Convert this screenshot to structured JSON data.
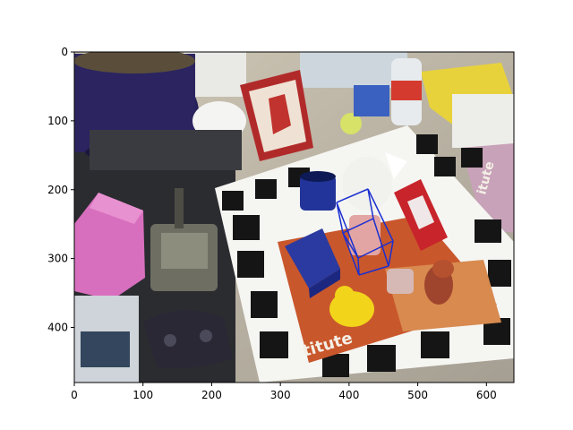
{
  "figure": {
    "image_description_kind": "photo",
    "box_color": "#1a2fd0"
  },
  "axes": {
    "x_ticks": [
      0,
      100,
      200,
      300,
      400,
      500,
      600
    ],
    "y_ticks": [
      0,
      100,
      200,
      300,
      400
    ],
    "x_tick_labels": [
      "0",
      "100",
      "200",
      "300",
      "400",
      "500",
      "600"
    ],
    "y_tick_labels": [
      "0",
      "100",
      "200",
      "300",
      "400"
    ],
    "xlim": [
      0,
      640
    ],
    "ylim": [
      480,
      0
    ]
  },
  "scene": {
    "objects": [
      {
        "name": "blue-pot"
      },
      {
        "name": "white-bowl"
      },
      {
        "name": "red-picture-frame"
      },
      {
        "name": "tennis-ball"
      },
      {
        "name": "water-bottle"
      },
      {
        "name": "white-watering-can"
      },
      {
        "name": "blue-mug"
      },
      {
        "name": "red-toy-car"
      },
      {
        "name": "pink-foam-block"
      },
      {
        "name": "grey-vise"
      },
      {
        "name": "blue-box"
      },
      {
        "name": "yellow-duck"
      },
      {
        "name": "game-controller"
      },
      {
        "name": "brown-figure"
      },
      {
        "name": "white-egg-carton"
      }
    ]
  },
  "magazine": {
    "text_1": "titute",
    "text_2": "itute"
  }
}
